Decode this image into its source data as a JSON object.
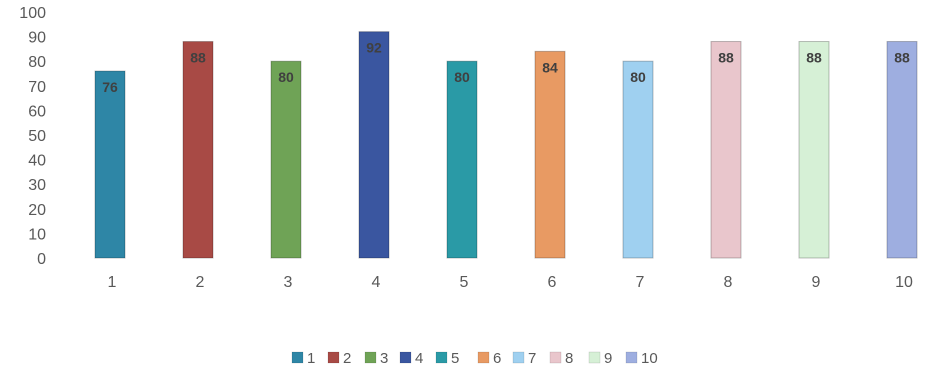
{
  "chart_data": {
    "type": "bar",
    "title": "",
    "xlabel": "",
    "ylabel": "",
    "categories": [
      "1",
      "2",
      "3",
      "4",
      "5",
      "6",
      "7",
      "8",
      "9",
      "10"
    ],
    "values": [
      76,
      88,
      80,
      92,
      80,
      84,
      80,
      88,
      88,
      88
    ],
    "data_labels": [
      "76",
      "88",
      "80",
      "92",
      "80",
      "84",
      "80",
      "88",
      "88",
      "88"
    ],
    "ylim": [
      0,
      100
    ],
    "yticks": [
      "0",
      "10",
      "20",
      "30",
      "40",
      "50",
      "60",
      "70",
      "80",
      "90",
      "100"
    ],
    "grid": false,
    "legend_position": "bottom",
    "legend": [
      "1",
      "2",
      "3",
      "4",
      "5",
      "6",
      "7",
      "8",
      "9",
      "10"
    ],
    "colors": [
      "#2e86a6",
      "#a84a45",
      "#6fa356",
      "#3a56a0",
      "#2a9aa6",
      "#e89a63",
      "#9fd0f0",
      "#e9c6cc",
      "#d6f0d6",
      "#9eaee0"
    ]
  }
}
